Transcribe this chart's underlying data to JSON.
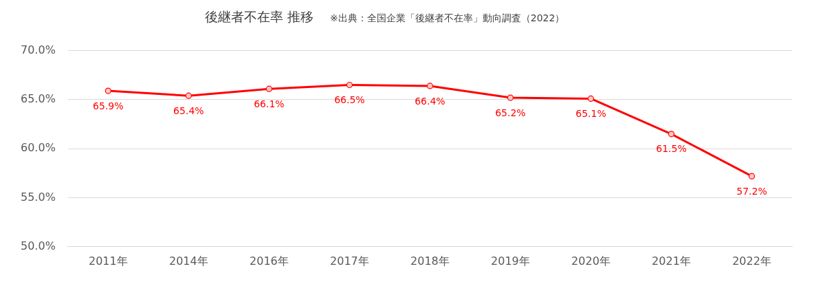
{
  "chart_data": {
    "type": "line",
    "title": "後継者不在率 推移",
    "annotations": [
      "※出典：全国企業「後継者不在率」動向調査（2022）"
    ],
    "categories": [
      "2011年",
      "2014年",
      "2016年",
      "2017年",
      "2018年",
      "2019年",
      "2020年",
      "2021年",
      "2022年"
    ],
    "series": [
      {
        "color": "#ff0000",
        "values": [
          65.9,
          65.4,
          66.1,
          66.5,
          66.4,
          65.2,
          65.1,
          61.5,
          57.2
        ],
        "value_labels": [
          "65.9%",
          "65.4%",
          "66.1%",
          "66.5%",
          "66.4%",
          "65.2%",
          "65.1%",
          "61.5%",
          "57.2%"
        ]
      }
    ],
    "ylim": [
      50,
      70
    ],
    "yticks": [
      {
        "value": 50,
        "label": "50.0%"
      },
      {
        "value": 55,
        "label": "55.0%"
      },
      {
        "value": 60,
        "label": "60.0%"
      },
      {
        "value": 65,
        "label": "65.0%"
      },
      {
        "value": 70,
        "label": "70.0%"
      }
    ],
    "grid": "y",
    "legend": false,
    "marker": "circle",
    "line_style": "solid"
  }
}
